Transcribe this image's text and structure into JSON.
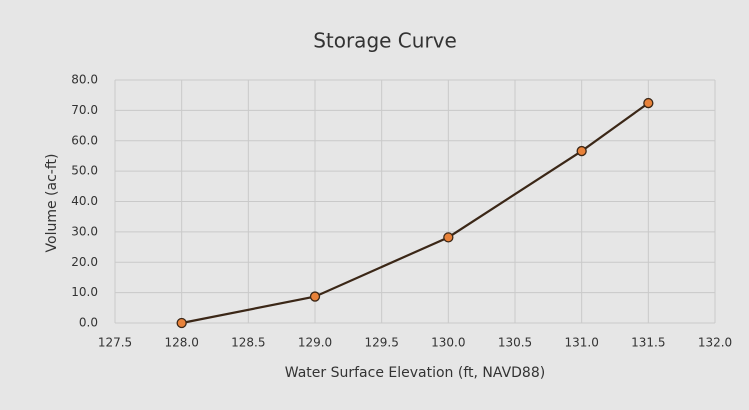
{
  "chart_data": {
    "type": "line",
    "title": "Storage Curve",
    "x_label": "Water Surface Elevation (ft, NAVD88)",
    "y_label": "Volume (ac-ft)",
    "x": [
      128.0,
      129.0,
      130.0,
      131.0,
      131.5
    ],
    "series": [
      {
        "name": "Storage",
        "color": "#3b2717",
        "marker_color": "#e8823a",
        "values": [
          0,
          8.7,
          28.2,
          56.6,
          72.4
        ]
      }
    ],
    "xlim": [
      127.5,
      132.0
    ],
    "xticks": [
      {
        "value": 127.5,
        "label": "127.5"
      },
      {
        "value": 128,
        "label": "128.0"
      },
      {
        "value": 128.5,
        "label": "128.5"
      },
      {
        "value": 129,
        "label": "129.0"
      },
      {
        "value": 129.5,
        "label": "129.5"
      },
      {
        "value": 130,
        "label": "130.0"
      },
      {
        "value": 130.5,
        "label": "130.5"
      },
      {
        "value": 131,
        "label": "131.0"
      },
      {
        "value": 131.5,
        "label": "131.5"
      },
      {
        "value": 132,
        "label": "132.0"
      }
    ],
    "ylim": [
      0,
      80
    ],
    "yticks": [
      {
        "value": 0,
        "label": "0.0"
      },
      {
        "value": 10,
        "label": "10.0"
      },
      {
        "value": 20,
        "label": "20.0"
      },
      {
        "value": 30,
        "label": "30.0"
      },
      {
        "value": 40,
        "label": "40.0"
      },
      {
        "value": 50,
        "label": "50.0"
      },
      {
        "value": 60,
        "label": "60.0"
      },
      {
        "value": 70,
        "label": "70.0"
      },
      {
        "value": 80,
        "label": "80.0"
      }
    ],
    "grid": true
  }
}
